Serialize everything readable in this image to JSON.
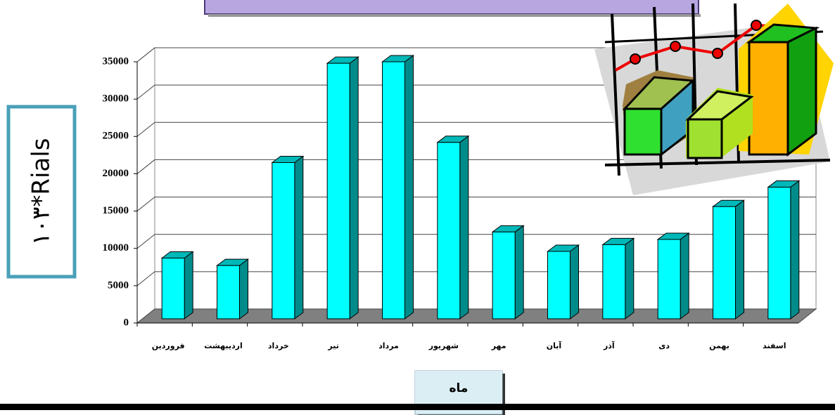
{
  "chart_data": {
    "type": "bar",
    "y_label": "۱۰۳*Rials",
    "x_label": "ماه",
    "categories": [
      "فروردین",
      "اردیبهشت",
      "خرداد",
      "تیر",
      "مرداد",
      "شهریور",
      "مهر",
      "آبان",
      "آذر",
      "دی",
      "بهمن",
      "اسفند"
    ],
    "values": [
      8700,
      7700,
      21500,
      34800,
      35000,
      24200,
      12200,
      9600,
      10500,
      11200,
      15600,
      18200
    ],
    "color": "#00ffff",
    "ylim": [
      0,
      35000
    ],
    "yticks": [
      0,
      5000,
      10000,
      15000,
      20000,
      25000,
      30000,
      35000
    ],
    "grid": true
  }
}
